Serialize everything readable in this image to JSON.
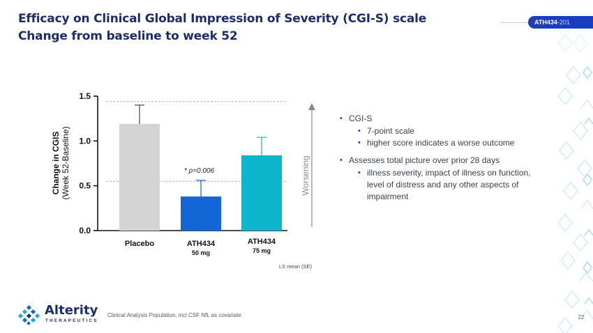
{
  "header": {
    "title_line1": "Efficacy on Clinical Global Impression of Severity (CGI-S) scale",
    "title_line2": "Change from baseline to week 52",
    "tag_bold": "ATH434",
    "tag_rest": "-201"
  },
  "chart_data": {
    "type": "bar",
    "ylabel_line1": "Change in CGIS",
    "ylabel_line2": "(Week 52-Baseline)",
    "ylim": [
      0,
      1.5
    ],
    "yticks": [
      "0.0",
      "0.5",
      "1.0",
      "1.5"
    ],
    "categories": [
      {
        "line1": "Placebo",
        "line2": ""
      },
      {
        "line1": "ATH434",
        "line2": "50 mg"
      },
      {
        "line1": "ATH434",
        "line2": "75 mg"
      }
    ],
    "values": [
      1.19,
      0.38,
      0.84
    ],
    "errors": [
      0.21,
      0.18,
      0.2
    ],
    "colors": [
      "#d4d4d4",
      "#1266d6",
      "#0eb6cd"
    ],
    "annotation": "* p=0.006",
    "arrow_label": "Worsening",
    "note": "LS mean (SE)",
    "reference_lines": [
      1.44,
      0.55
    ],
    "grid": false
  },
  "bullets": [
    {
      "text": "CGI-S",
      "sub": [
        "7-point scale",
        "higher score indicates a worse outcome"
      ]
    },
    {
      "text": "Assesses total picture over prior 28 days",
      "sub": [
        "illness severity, impact of illness on function, level of distress and any other aspects of impairment"
      ]
    }
  ],
  "footer": {
    "note": "Clinical Analysis Population, incl CSF NfL as covariate",
    "logo_name": "Alterity",
    "logo_sub": "THERAPEUTICS",
    "page_number": "22"
  }
}
